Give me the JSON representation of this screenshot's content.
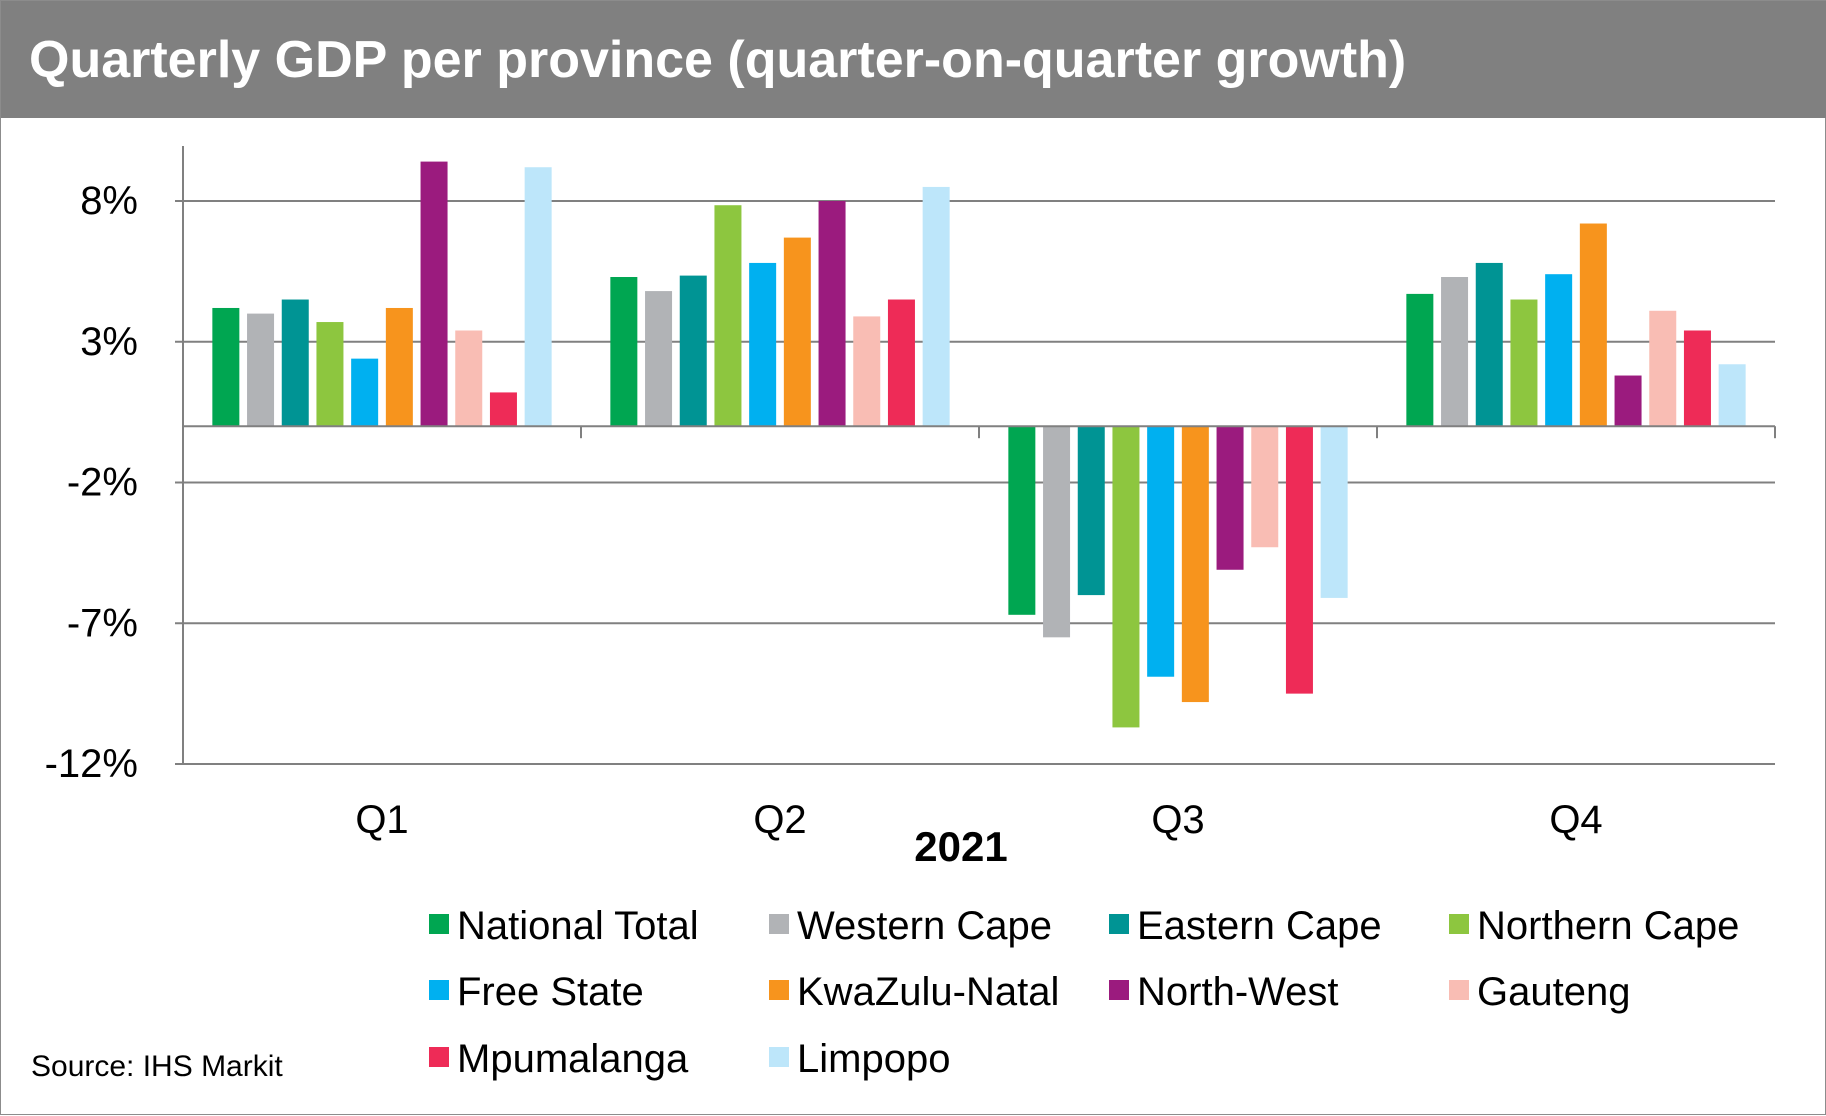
{
  "chart_data": {
    "type": "bar",
    "title": "Quarterly GDP per province (quarter-on-quarter growth)",
    "xlabel": "2021",
    "ylabel": "",
    "ylim": [
      -12,
      10
    ],
    "yticks": [
      8,
      3,
      -2,
      -7,
      -12
    ],
    "ytick_labels": [
      "8%",
      "3%",
      "-2%",
      "-7%",
      "-12%"
    ],
    "grid": true,
    "legend_position": "bottom",
    "categories": [
      "Q1",
      "Q2",
      "Q3",
      "Q4"
    ],
    "series": [
      {
        "name": "National Total",
        "color": "#00a651",
        "values": [
          4.2,
          5.3,
          -6.7,
          4.7
        ]
      },
      {
        "name": "Western Cape",
        "color": "#b1b3b6",
        "values": [
          4.0,
          4.8,
          -7.5,
          5.3
        ]
      },
      {
        "name": "Eastern Cape",
        "color": "#009494",
        "values": [
          4.5,
          5.35,
          -6.0,
          5.8
        ]
      },
      {
        "name": "Northern Cape",
        "color": "#8dc63f",
        "values": [
          3.7,
          7.85,
          -10.7,
          4.5
        ]
      },
      {
        "name": "Free State",
        "color": "#00b0f0",
        "values": [
          2.4,
          5.8,
          -8.9,
          5.4
        ]
      },
      {
        "name": "KwaZulu-Natal",
        "color": "#f7941d",
        "values": [
          4.2,
          6.7,
          -9.8,
          7.2
        ]
      },
      {
        "name": "North-West",
        "color": "#9b1b7e",
        "values": [
          9.4,
          8.0,
          -5.1,
          1.8
        ]
      },
      {
        "name": "Gauteng",
        "color": "#f9bdb4",
        "values": [
          3.4,
          3.9,
          -4.3,
          4.1
        ]
      },
      {
        "name": "Mpumalanga",
        "color": "#ee2b57",
        "values": [
          1.2,
          4.5,
          -9.5,
          3.4
        ]
      },
      {
        "name": "Limpopo",
        "color": "#bde6fa",
        "values": [
          9.2,
          8.5,
          -6.1,
          2.2
        ]
      }
    ]
  },
  "source": "Source: IHS Markit"
}
